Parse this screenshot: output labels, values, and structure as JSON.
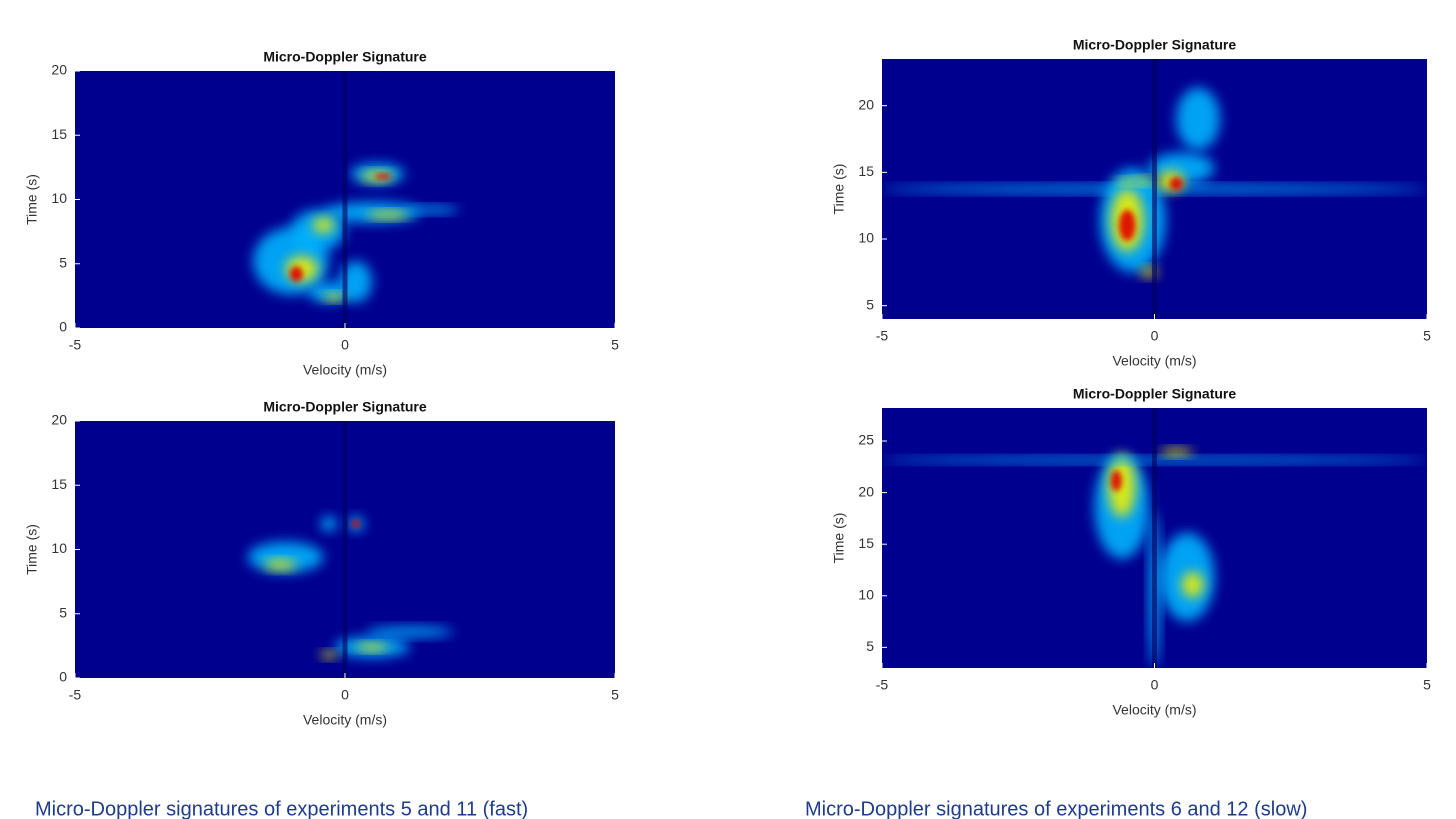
{
  "chart_data": [
    {
      "type": "heatmap",
      "title": "Micro-Doppler Signature",
      "xlabel": "Velocity (m/s)",
      "ylabel": "Time (s)",
      "xlim": [
        -5,
        5
      ],
      "xticks": [
        -5,
        0,
        5
      ],
      "ylim": [
        0,
        20
      ],
      "yticks": [
        0,
        5,
        10,
        15,
        20
      ]
    },
    {
      "type": "heatmap",
      "title": "Micro-Doppler Signature",
      "xlabel": "Velocity (m/s)",
      "ylabel": "Time (s)",
      "xlim": [
        -5,
        5
      ],
      "xticks": [
        -5,
        0,
        5
      ],
      "ylim": [
        0,
        20
      ],
      "yticks": [
        0,
        5,
        10,
        15,
        20
      ]
    },
    {
      "type": "heatmap",
      "title": "Micro-Doppler Signature",
      "xlabel": "Velocity (m/s)",
      "ylabel": "Time (s)",
      "xlim": [
        -5,
        5
      ],
      "xticks": [
        -5,
        0,
        5
      ],
      "ylim": [
        4,
        23.5
      ],
      "yticks": [
        5,
        10,
        15,
        20
      ]
    },
    {
      "type": "heatmap",
      "title": "Micro-Doppler Signature",
      "xlabel": "Velocity (m/s)",
      "ylabel": "Time (s)",
      "xlim": [
        -5,
        5
      ],
      "xticks": [
        -5,
        0,
        5
      ],
      "ylim": [
        3,
        28.2
      ],
      "yticks": [
        5,
        10,
        15,
        20,
        25
      ]
    }
  ],
  "captions": [
    "Micro-Doppler signatures of experiments 5 and 11 (fast)",
    "Micro-Doppler signatures of experiments 6 and 12 (slow)"
  ]
}
